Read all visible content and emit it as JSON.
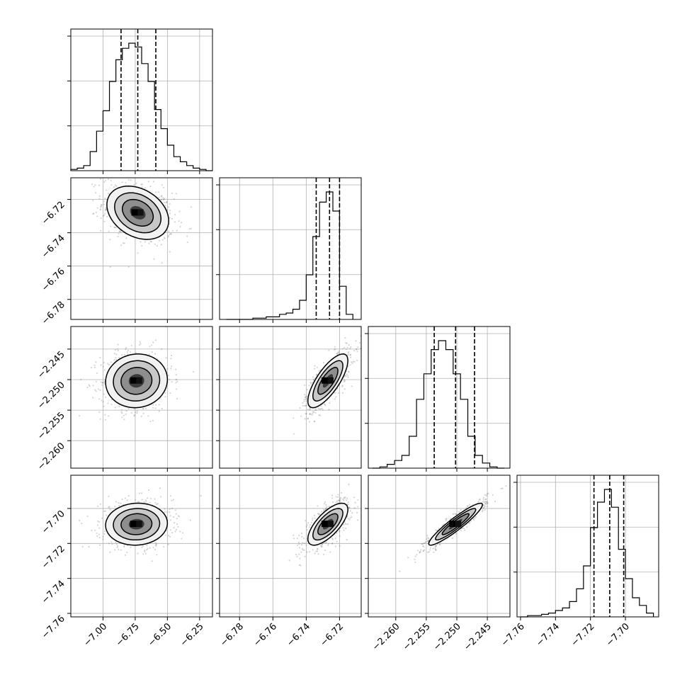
{
  "chart_data": {
    "type": "corner",
    "grid": true,
    "parameters": [
      {
        "key": "p0",
        "range": [
          -7.25,
          -6.15
        ],
        "xticks": [
          "−7.00",
          "−6.75",
          "−6.50",
          "−6.25"
        ],
        "xtick_values": [
          -7.0,
          -6.75,
          -6.5,
          -6.25
        ],
        "yticks": [],
        "ytick_values": []
      },
      {
        "key": "p1",
        "range": [
          -6.792,
          -6.707
        ],
        "xticks": [
          "−6.78",
          "−6.76",
          "−6.74",
          "−6.72"
        ],
        "xtick_values": [
          -6.78,
          -6.76,
          -6.74,
          -6.72
        ],
        "yticks": [
          "−6.72",
          "−6.74",
          "−6.76",
          "−6.78"
        ],
        "ytick_values": [
          -6.72,
          -6.74,
          -6.76,
          -6.78
        ]
      },
      {
        "key": "p2",
        "range": [
          -2.2645,
          -2.2413
        ],
        "xticks": [
          "−2.260",
          "−2.255",
          "−2.250",
          "−2.245"
        ],
        "xtick_values": [
          -2.26,
          -2.255,
          -2.25,
          -2.245
        ],
        "yticks": [
          "−2.245",
          "−2.250",
          "−2.255",
          "−2.260"
        ],
        "ytick_values": [
          -2.245,
          -2.25,
          -2.255,
          -2.26
        ]
      },
      {
        "key": "p3",
        "range": [
          -7.762,
          -7.681
        ],
        "xticks": [
          "−7.76",
          "−7.74",
          "−7.72",
          "−7.70"
        ],
        "xtick_values": [
          -7.76,
          -7.74,
          -7.72,
          -7.7
        ],
        "yticks": [
          "−7.70",
          "−7.72",
          "−7.74",
          "−7.76"
        ],
        "ytick_values": [
          -7.7,
          -7.72,
          -7.74,
          -7.76
        ]
      }
    ],
    "marginals": [
      {
        "param": 0,
        "quantiles": [
          -6.86,
          -6.73,
          -6.59
        ],
        "bin_edges": [
          -7.25,
          -7.2,
          -7.15,
          -7.1,
          -7.05,
          -7.0,
          -6.95,
          -6.9,
          -6.85,
          -6.8,
          -6.75,
          -6.7,
          -6.65,
          -6.6,
          -6.55,
          -6.5,
          -6.45,
          -6.4,
          -6.35,
          -6.3,
          -6.25,
          -6.2,
          -6.15
        ],
        "counts": [
          0.01,
          0.02,
          0.04,
          0.15,
          0.31,
          0.47,
          0.7,
          0.87,
          0.96,
          1.0,
          0.97,
          0.84,
          0.7,
          0.48,
          0.33,
          0.2,
          0.11,
          0.07,
          0.04,
          0.02,
          0.01,
          0.0
        ]
      },
      {
        "param": 1,
        "quantiles": [
          -6.734,
          -6.726,
          -6.72
        ],
        "bin_edges": [
          -6.788,
          -6.784,
          -6.78,
          -6.776,
          -6.772,
          -6.768,
          -6.764,
          -6.76,
          -6.756,
          -6.752,
          -6.748,
          -6.744,
          -6.74,
          -6.736,
          -6.732,
          -6.728,
          -6.724,
          -6.72,
          -6.716,
          -6.712
        ],
        "counts": [
          0.0,
          0.0,
          0.0,
          0.0,
          0.01,
          0.01,
          0.02,
          0.02,
          0.04,
          0.05,
          0.08,
          0.15,
          0.35,
          0.65,
          0.92,
          1.0,
          0.85,
          0.26,
          0.04
        ]
      },
      {
        "param": 2,
        "quantiles": [
          -2.2537,
          -2.2502,
          -2.2471
        ],
        "bin_edges": [
          -2.2638,
          -2.2626,
          -2.2614,
          -2.2602,
          -2.259,
          -2.2578,
          -2.2566,
          -2.2554,
          -2.2542,
          -2.253,
          -2.2518,
          -2.2506,
          -2.2494,
          -2.2482,
          -2.247,
          -2.2458,
          -2.2446,
          -2.2434,
          -2.2422
        ],
        "counts": [
          0.0,
          0.01,
          0.03,
          0.06,
          0.1,
          0.25,
          0.54,
          0.74,
          0.93,
          1.0,
          0.93,
          0.74,
          0.54,
          0.25,
          0.1,
          0.04,
          0.01,
          0.0
        ]
      },
      {
        "param": 3,
        "quantiles": [
          -7.718,
          -7.709,
          -7.701
        ],
        "bin_edges": [
          -7.76,
          -7.756,
          -7.752,
          -7.748,
          -7.744,
          -7.74,
          -7.736,
          -7.732,
          -7.728,
          -7.724,
          -7.72,
          -7.716,
          -7.712,
          -7.708,
          -7.704,
          -7.7,
          -7.696,
          -7.692,
          -7.688,
          -7.684
        ],
        "counts": [
          0.0,
          0.01,
          0.01,
          0.02,
          0.03,
          0.05,
          0.07,
          0.12,
          0.22,
          0.4,
          0.7,
          0.9,
          1.0,
          0.86,
          0.53,
          0.3,
          0.15,
          0.09,
          0.03
        ]
      }
    ],
    "pairs": [
      {
        "x": 1,
        "y": 0,
        "mean": [
          -6.73,
          -6.728
        ],
        "sd": [
          0.12,
          0.008
        ],
        "rho": -0.3
      },
      {
        "x": 2,
        "y": 0,
        "mean": [
          -6.74,
          -2.2502
        ],
        "sd": [
          0.12,
          0.0022
        ],
        "rho": 0.05
      },
      {
        "x": 2,
        "y": 1,
        "mean": [
          -6.727,
          -2.2502
        ],
        "sd": [
          0.006,
          0.0022
        ],
        "rho": 0.75
      },
      {
        "x": 3,
        "y": 0,
        "mean": [
          -6.74,
          -7.709
        ],
        "sd": [
          0.12,
          0.006
        ],
        "rho": 0.05
      },
      {
        "x": 3,
        "y": 1,
        "mean": [
          -6.727,
          -7.709
        ],
        "sd": [
          0.006,
          0.006
        ],
        "rho": 0.7
      },
      {
        "x": 3,
        "y": 2,
        "mean": [
          -2.2502,
          -7.709
        ],
        "sd": [
          0.0022,
          0.006
        ],
        "rho": 0.93
      }
    ]
  }
}
